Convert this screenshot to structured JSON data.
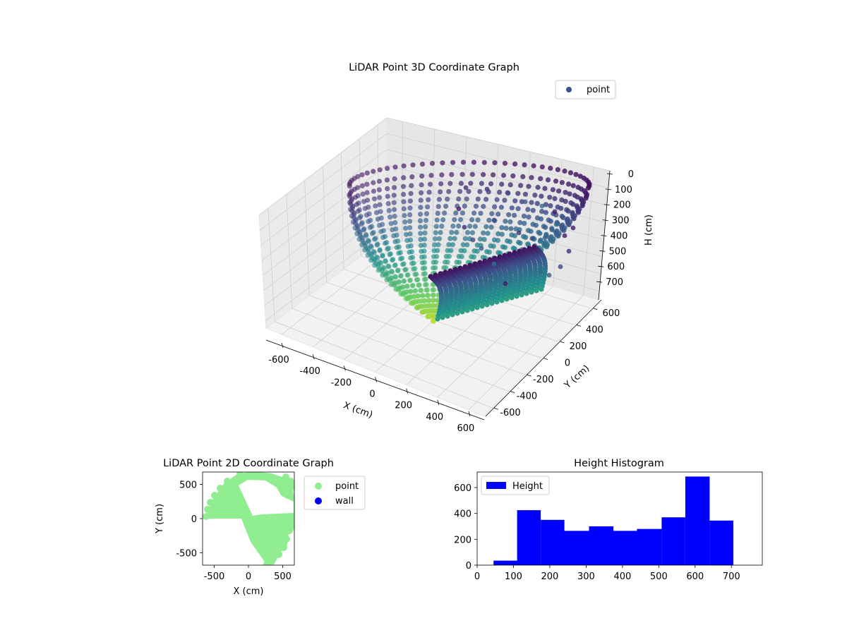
{
  "chart_data": [
    {
      "type": "scatter3d",
      "title": "LiDAR Point 3D Coordinate Graph",
      "xlabel": "X (cm)",
      "ylabel": "Y (cm)",
      "zlabel": "H (cm)",
      "xticks": [
        -600,
        -400,
        -200,
        0,
        200,
        400,
        600
      ],
      "yticks": [
        -600,
        -400,
        -200,
        0,
        200,
        400,
        600
      ],
      "zticks": [
        0,
        100,
        200,
        300,
        400,
        500,
        600,
        700
      ],
      "xlim": [
        -700,
        700
      ],
      "ylim": [
        -700,
        700
      ],
      "zlim": [
        0,
        750
      ],
      "zaxis_inverted": true,
      "colormap": "viridis",
      "legend": {
        "position": "upper-right",
        "entries": [
          {
            "label": "point",
            "color": "#3b528b"
          }
        ]
      },
      "grid": true
    },
    {
      "type": "scatter",
      "title": "LiDAR Point 2D Coordinate Graph",
      "xlabel": "X (cm)",
      "ylabel": "Y (cm)",
      "xticks": [
        -500,
        0,
        500
      ],
      "yticks": [
        -500,
        0,
        500
      ],
      "xlim": [
        -670,
        670
      ],
      "ylim": [
        -680,
        680
      ],
      "series": [
        {
          "name": "point",
          "color": "#90ee90"
        },
        {
          "name": "wall",
          "color": "#0000ff"
        }
      ],
      "legend": {
        "position": "outside-right"
      }
    },
    {
      "type": "bar",
      "title": "Height Histogram",
      "bin_edges": [
        45,
        110,
        175,
        240,
        308,
        375,
        440,
        508,
        573,
        640,
        705
      ],
      "values": [
        35,
        425,
        350,
        265,
        300,
        265,
        280,
        370,
        685,
        345
      ],
      "xticks": [
        0,
        100,
        200,
        300,
        400,
        500,
        600,
        700
      ],
      "yticks": [
        0,
        200,
        400,
        600
      ],
      "xlim": [
        0,
        785
      ],
      "ylim": [
        0,
        720
      ],
      "color": "#0000ff",
      "series": [
        {
          "name": "Height",
          "color": "#0000ff"
        }
      ],
      "legend": {
        "position": "upper-left"
      }
    }
  ]
}
